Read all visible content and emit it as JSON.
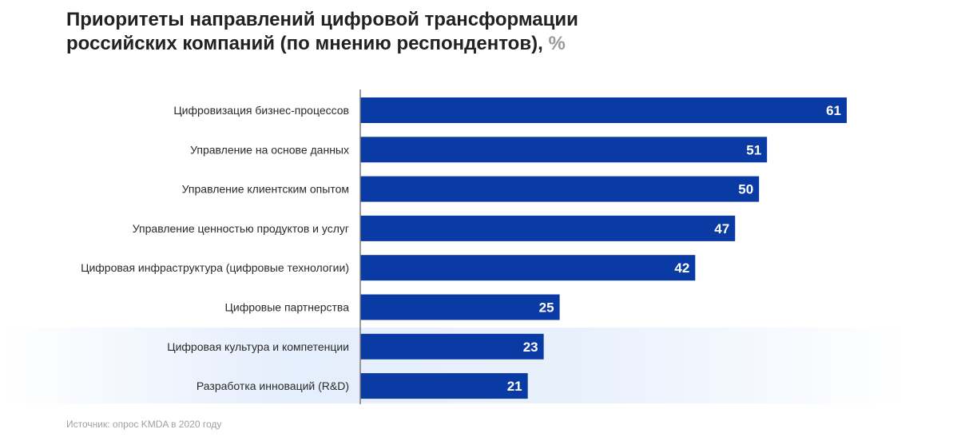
{
  "header": {
    "title_line1": "Приоритеты направлений цифровой трансформации",
    "title_line2": "российских компаний (по мнению респондентов),",
    "title_unit": "%"
  },
  "footer": {
    "source": "Источник: опрос KMDA в 2020 году"
  },
  "colors": {
    "bar": "#0a3aa3",
    "bar_label": "#ffffff",
    "category_label": "#2a2a2a",
    "axis": "#7a7a7a"
  },
  "chart_data": {
    "type": "bar",
    "orientation": "horizontal",
    "categories": [
      "Цифровизация бизнес-процессов",
      "Управление на основе данных",
      "Управление клиентским опытом",
      "Управление ценностью продуктов и услуг",
      "Цифровая инфраструктура (цифровые технологии)",
      "Цифровые партнерства",
      "Цифровая культура и компетенции",
      "Разработка инноваций (R&D)"
    ],
    "values": [
      61,
      51,
      50,
      47,
      42,
      25,
      23,
      21
    ],
    "xlim": [
      0,
      61
    ],
    "grid": false,
    "legend": "none",
    "data_labels": "inside-end"
  }
}
